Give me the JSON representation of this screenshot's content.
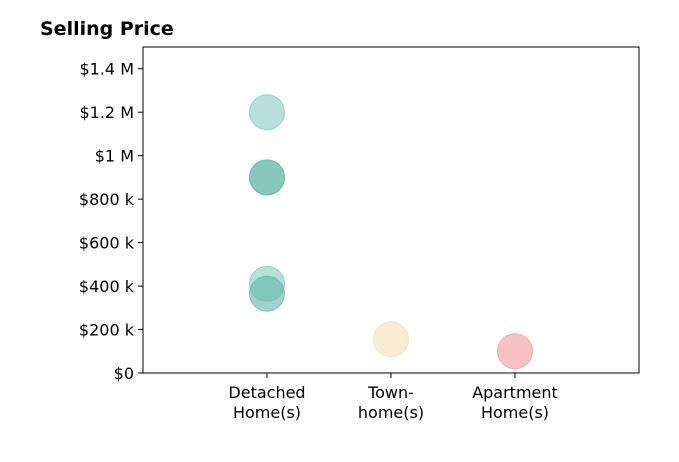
{
  "chart_data": {
    "type": "scatter",
    "title": "Selling Price",
    "xlabel": "",
    "ylabel": "",
    "categories": [
      [
        "Detached",
        "Home(s)"
      ],
      [
        "Town-",
        "home(s)"
      ],
      [
        "Apartment",
        "Home(s)"
      ]
    ],
    "xlim": [
      0,
      4
    ],
    "ylim": [
      0,
      1500000
    ],
    "yticks": [
      0,
      200000,
      400000,
      600000,
      800000,
      1000000,
      1200000,
      1400000
    ],
    "ytick_labels": [
      "$0",
      "$200 k",
      "$400 k",
      "$600 k",
      "$800 k",
      "$1 M",
      "$1.2 M",
      "$1.4 M"
    ],
    "grid": false,
    "colors": {
      "detached": "#72c2b6",
      "detached_dark": "#5fb5a8",
      "townhome": "#f3deaa",
      "apartment": "#f3999e"
    },
    "points": [
      {
        "category": 1,
        "y": 1200000,
        "color": "#72c2b6",
        "opacity": 0.5
      },
      {
        "category": 1,
        "y": 900000,
        "color": "#5fb5a8",
        "opacity": 0.5
      },
      {
        "category": 1,
        "y": 900000,
        "color": "#5fb5a8",
        "opacity": 0.5
      },
      {
        "category": 1,
        "y": 410000,
        "color": "#72c2b6",
        "opacity": 0.5
      },
      {
        "category": 1,
        "y": 365000,
        "color": "#5fb5a8",
        "opacity": 0.6
      },
      {
        "category": 2,
        "y": 155000,
        "color": "#f3deaa",
        "opacity": 0.55
      },
      {
        "category": 3,
        "y": 100000,
        "color": "#f3999e",
        "opacity": 0.6
      }
    ]
  }
}
